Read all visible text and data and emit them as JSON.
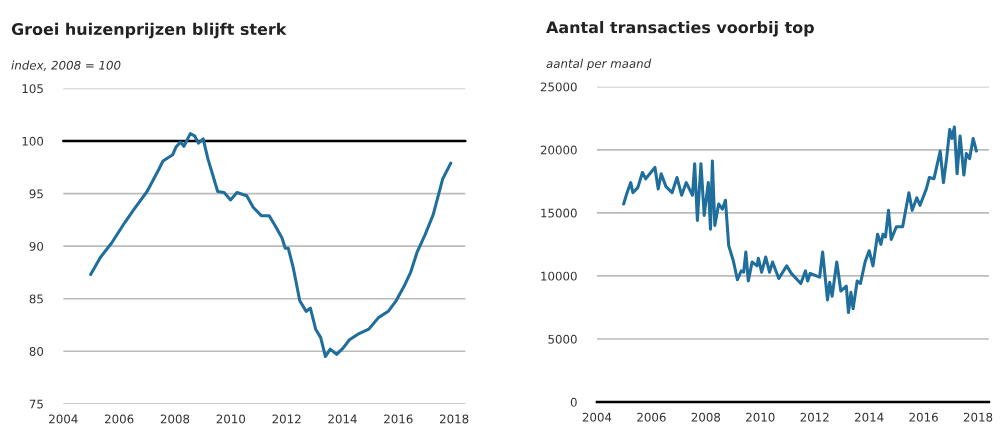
{
  "chart_data": [
    {
      "type": "line",
      "title": "Groei huizenprijzen blijft sterk",
      "ylabel": "index, 2008 = 100",
      "xlim": [
        2004,
        2018.4
      ],
      "ylim": [
        75,
        105
      ],
      "xticks": [
        2004,
        2006,
        2008,
        2010,
        2012,
        2014,
        2016,
        2018
      ],
      "yticks": [
        75,
        80,
        85,
        90,
        95,
        100,
        105
      ],
      "grid": "y",
      "legend": false,
      "marker": "none",
      "line_style": "solid",
      "ref_lines": [
        {
          "axis": "y",
          "value": 100,
          "color": "#000000"
        }
      ],
      "series": [
        {
          "color": "#1f6e9c",
          "x": [
            2004.98,
            2005.32,
            2005.73,
            2006.19,
            2006.53,
            2007.0,
            2007.4,
            2007.57,
            2007.92,
            2008.03,
            2008.2,
            2008.32,
            2008.55,
            2008.7,
            2008.84,
            2009.01,
            2009.18,
            2009.53,
            2009.76,
            2009.99,
            2010.22,
            2010.57,
            2010.8,
            2011.09,
            2011.37,
            2011.6,
            2011.83,
            2011.95,
            2012.06,
            2012.24,
            2012.47,
            2012.7,
            2012.85,
            2013.04,
            2013.22,
            2013.39,
            2013.56,
            2013.79,
            2014.02,
            2014.25,
            2014.54,
            2014.94,
            2015.29,
            2015.64,
            2015.92,
            2016.21,
            2016.44,
            2016.67,
            2016.96,
            2017.25,
            2017.59,
            2017.88
          ],
          "values": [
            87.3,
            88.9,
            90.3,
            92.2,
            93.5,
            95.2,
            97.2,
            98.1,
            98.7,
            99.4,
            99.9,
            99.5,
            100.7,
            100.5,
            99.8,
            100.2,
            98.3,
            95.2,
            95.1,
            94.4,
            95.1,
            94.8,
            93.7,
            92.9,
            92.9,
            91.9,
            90.8,
            89.8,
            89.8,
            87.9,
            84.8,
            83.8,
            84.1,
            82.1,
            81.3,
            79.5,
            80.2,
            79.7,
            80.3,
            81.1,
            81.6,
            82.1,
            83.2,
            83.8,
            84.8,
            86.2,
            87.5,
            89.4,
            91.1,
            93.0,
            96.4,
            97.9
          ]
        }
      ]
    },
    {
      "type": "line",
      "title": "Aantal transacties voorbij top",
      "ylabel": "aantal per maand",
      "xlim": [
        2004,
        2018.4
      ],
      "ylim": [
        0,
        25000
      ],
      "xticks": [
        2004,
        2006,
        2008,
        2010,
        2012,
        2014,
        2016,
        2018
      ],
      "yticks": [
        0,
        5000,
        10000,
        15000,
        20000,
        25000
      ],
      "grid": "y",
      "legend": false,
      "marker": "none",
      "line_style": "solid",
      "series": [
        {
          "color": "#1f6e9c",
          "x": [
            2004.98,
            2005.09,
            2005.24,
            2005.32,
            2005.5,
            2005.67,
            2005.79,
            2006.13,
            2006.25,
            2006.36,
            2006.53,
            2006.76,
            2006.94,
            2007.11,
            2007.28,
            2007.51,
            2007.59,
            2007.69,
            2007.82,
            2007.94,
            2008.09,
            2008.17,
            2008.24,
            2008.33,
            2008.47,
            2008.61,
            2008.72,
            2008.84,
            2009.01,
            2009.16,
            2009.3,
            2009.39,
            2009.47,
            2009.56,
            2009.7,
            2009.88,
            2009.93,
            2010.05,
            2010.2,
            2010.34,
            2010.45,
            2010.68,
            2010.97,
            2011.14,
            2011.49,
            2011.66,
            2011.74,
            2011.83,
            2012.18,
            2012.29,
            2012.47,
            2012.55,
            2012.64,
            2012.81,
            2012.96,
            2013.16,
            2013.24,
            2013.33,
            2013.41,
            2013.56,
            2013.68,
            2013.85,
            2014.0,
            2014.14,
            2014.31,
            2014.43,
            2014.51,
            2014.6,
            2014.71,
            2014.81,
            2015.0,
            2015.23,
            2015.46,
            2015.58,
            2015.75,
            2015.87,
            2016.1,
            2016.21,
            2016.38,
            2016.61,
            2016.73,
            2016.85,
            2016.96,
            2017.04,
            2017.13,
            2017.23,
            2017.34,
            2017.48,
            2017.57,
            2017.69,
            2017.82,
            2017.94
          ],
          "values": [
            15700,
            16500,
            17400,
            16600,
            17000,
            18200,
            17700,
            18600,
            16900,
            18100,
            17100,
            16600,
            17800,
            16400,
            17400,
            16400,
            18900,
            14400,
            18900,
            14800,
            17400,
            13700,
            19100,
            14000,
            15700,
            15300,
            16000,
            12400,
            11200,
            9700,
            10400,
            10300,
            11900,
            9600,
            11100,
            10800,
            11400,
            10300,
            11500,
            10300,
            11100,
            9800,
            10800,
            10200,
            9400,
            10400,
            9600,
            10200,
            9900,
            11900,
            8100,
            9500,
            8400,
            11100,
            8800,
            9200,
            7100,
            8700,
            7400,
            9600,
            9400,
            11100,
            12000,
            10800,
            13300,
            12500,
            13300,
            13100,
            15200,
            12900,
            13900,
            13900,
            16600,
            15200,
            16200,
            15600,
            16900,
            17800,
            17700,
            19900,
            17400,
            19400,
            21600,
            20900,
            21800,
            18100,
            21100,
            18000,
            19700,
            19300,
            20900,
            19900
          ]
        }
      ]
    }
  ]
}
